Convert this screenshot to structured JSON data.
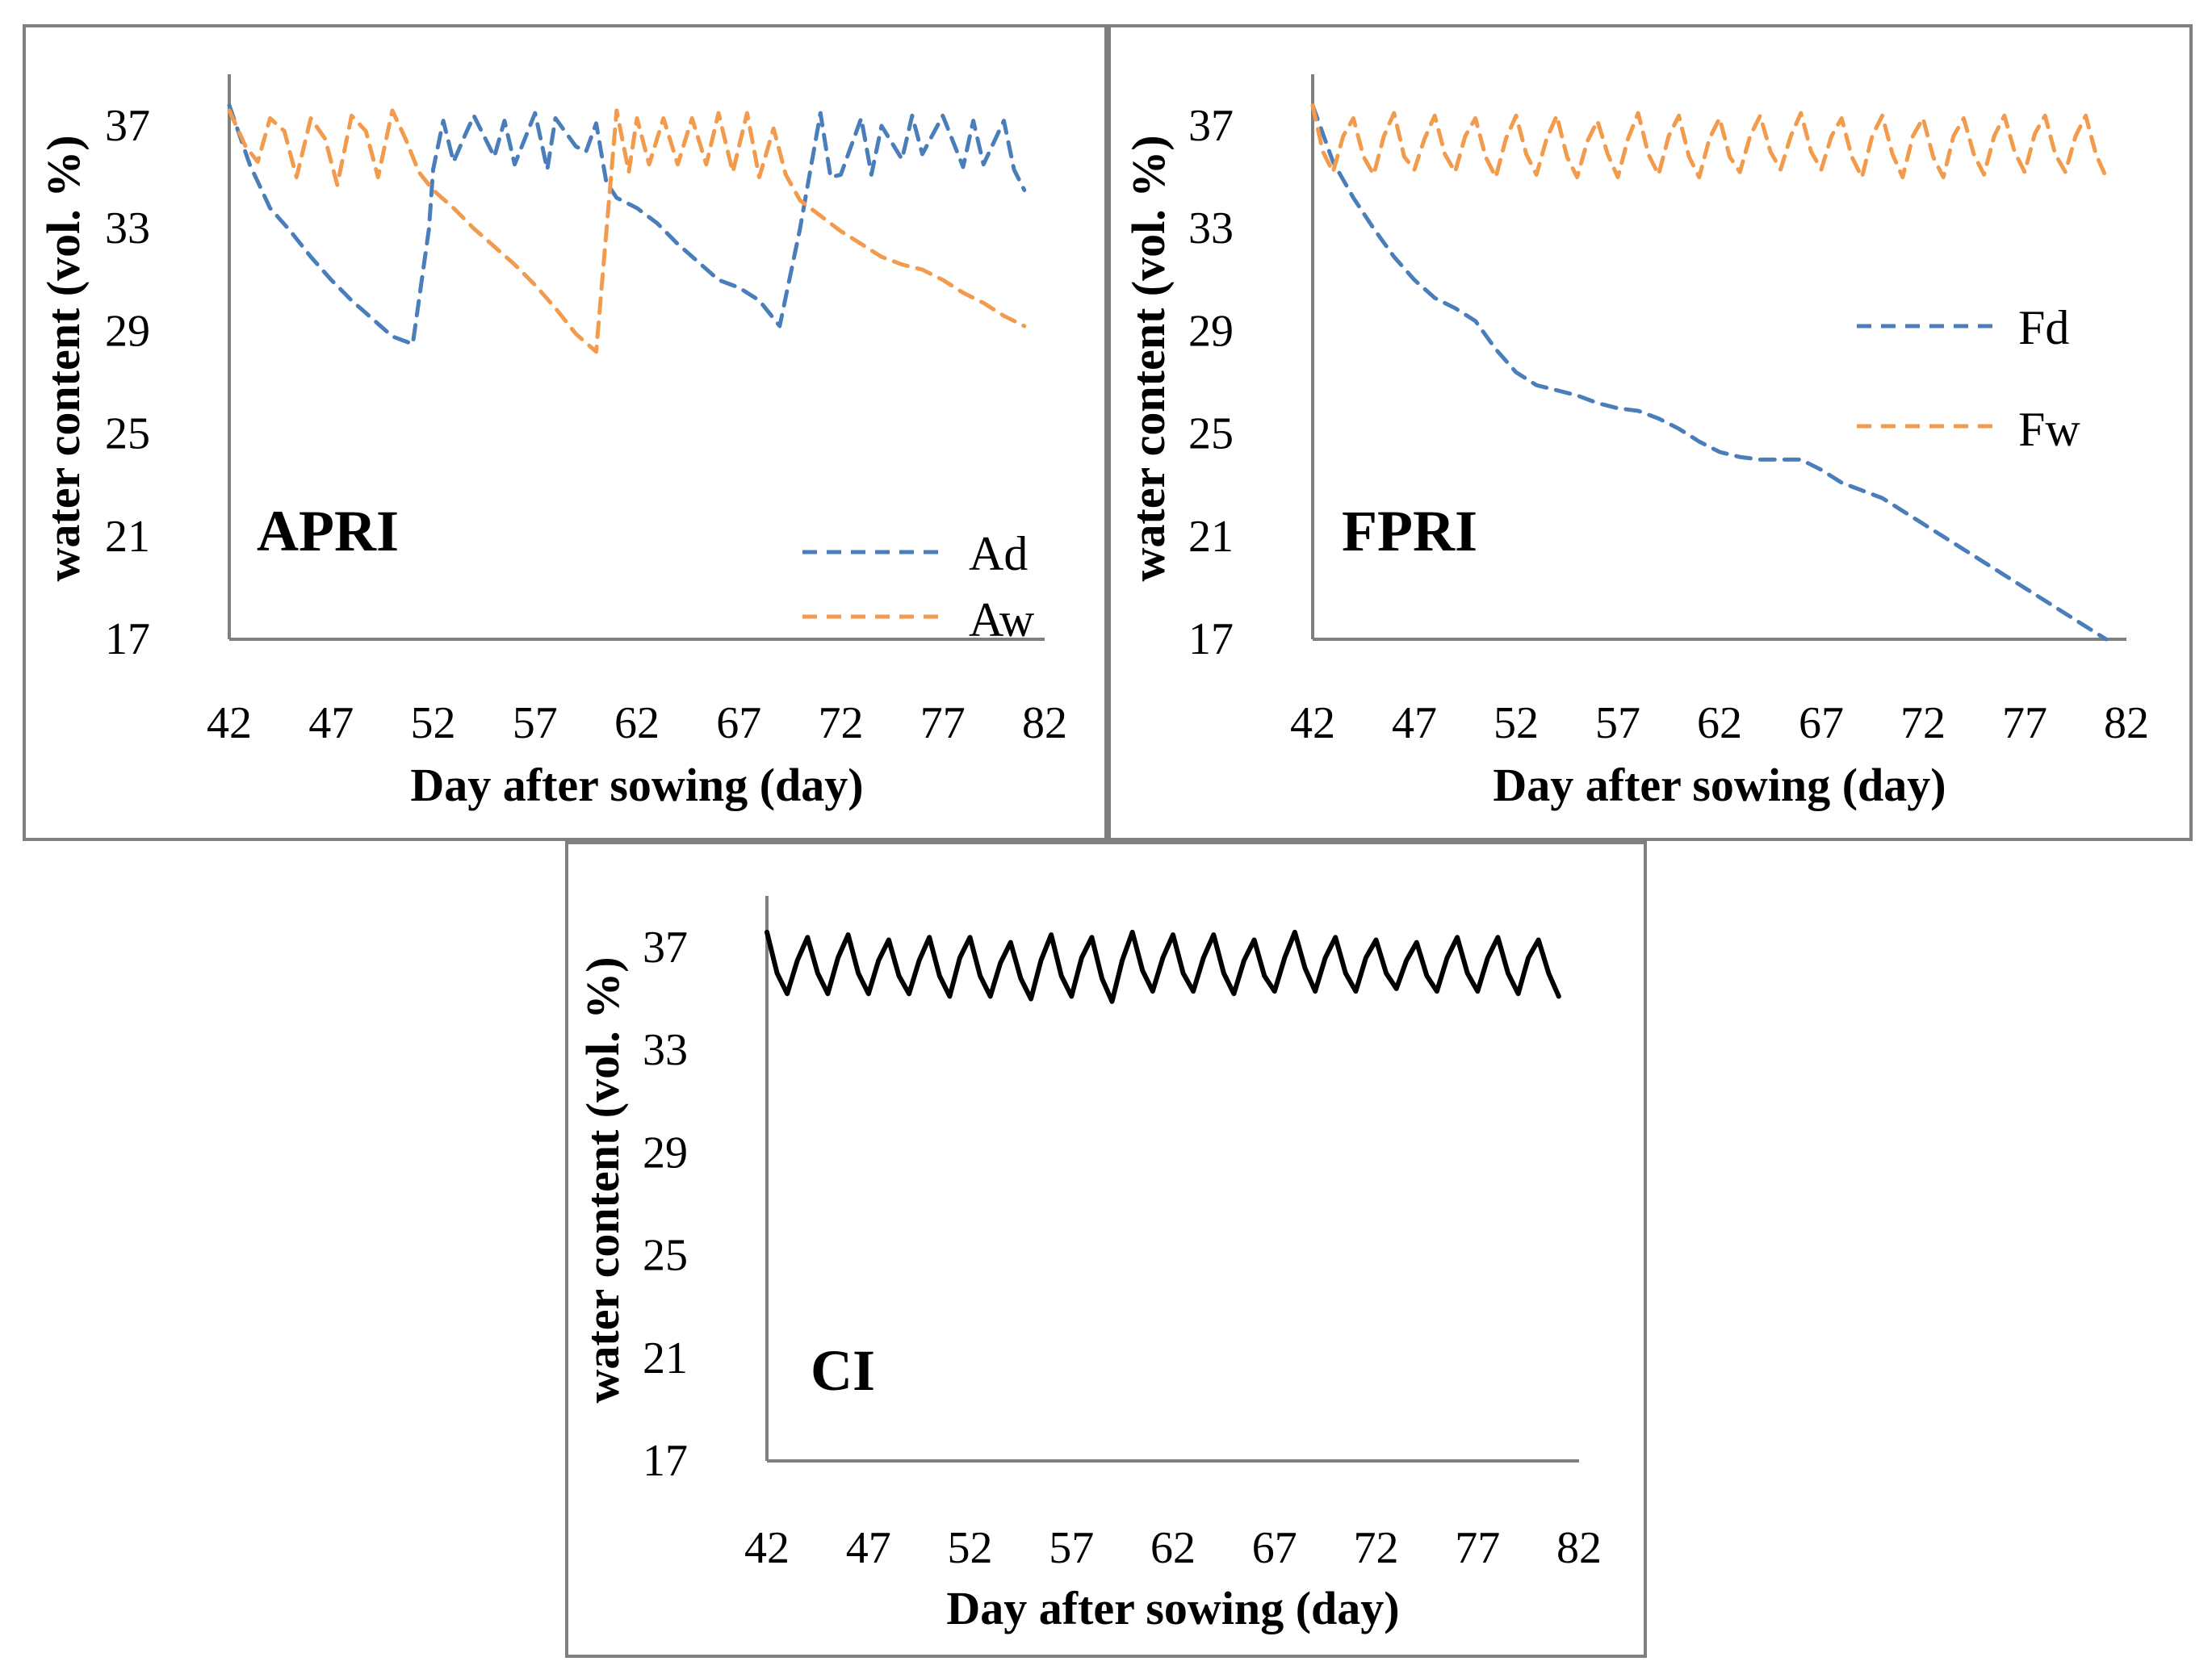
{
  "colors": {
    "blue": "#4a7ebb",
    "orange": "#f39b4c",
    "black": "#000000",
    "axis": "#7f7f7f"
  },
  "chart_data": [
    {
      "type": "line",
      "panel": "APRI",
      "ylabel": "water content (vol. %)",
      "xlabel": "Day after sowing (day)",
      "xlim": [
        42,
        82
      ],
      "ylim": [
        17,
        38
      ],
      "xticks": [
        "42",
        "47",
        "52",
        "57",
        "62",
        "67",
        "72",
        "77",
        "82"
      ],
      "yticks": [
        "37",
        "33",
        "29",
        "25",
        "21",
        "17"
      ],
      "legend": [
        "Ad",
        "Aw"
      ],
      "series": [
        {
          "name": "Ad",
          "style": "dashed",
          "color": "#4a7ebb",
          "x": [
            42,
            43,
            44,
            45,
            46,
            47,
            48,
            49,
            50,
            51,
            51.8,
            52,
            52.5,
            53,
            53.6,
            54,
            55,
            55.5,
            56,
            57,
            57.6,
            58,
            59,
            59.5,
            60,
            60.5,
            61,
            62,
            63,
            64,
            65,
            66,
            67,
            68,
            69,
            70,
            71,
            71.5,
            72,
            73,
            73.5,
            74,
            75,
            75.5,
            76,
            77,
            78,
            78.5,
            79,
            80,
            80.5,
            81
          ],
          "y": [
            37.8,
            35.5,
            33.8,
            32.9,
            31.9,
            31.0,
            30.2,
            29.5,
            28.8,
            28.5,
            33,
            35.3,
            37.2,
            35.6,
            36.7,
            37.4,
            35.8,
            37.2,
            35.5,
            37.5,
            35.3,
            37.3,
            36.2,
            36.0,
            37.1,
            34.8,
            34.2,
            33.8,
            33.2,
            32.4,
            31.7,
            31.0,
            30.7,
            30.2,
            29.2,
            33,
            37.5,
            35.0,
            35.1,
            37.3,
            35.1,
            37.0,
            35.7,
            37.4,
            35.9,
            37.4,
            35.4,
            37.2,
            35.5,
            37.2,
            35.3,
            34.5
          ]
        },
        {
          "name": "Aw",
          "style": "dashed",
          "color": "#f39b4c",
          "x": [
            42,
            42.8,
            43.4,
            44,
            44.7,
            45.3,
            46,
            46.7,
            47.3,
            48,
            48.7,
            49.3,
            50,
            50.7,
            51.3,
            52,
            53,
            54,
            55,
            56,
            57,
            58,
            59,
            60,
            61,
            61.6,
            62,
            62.6,
            63.3,
            64,
            64.7,
            65.4,
            66,
            66.7,
            67.4,
            68,
            68.7,
            69.3,
            70,
            71,
            72,
            73,
            74,
            75,
            76,
            77,
            78,
            79,
            80,
            81
          ],
          "y": [
            37.6,
            36.2,
            35.6,
            37.3,
            36.8,
            35.0,
            37.3,
            36.5,
            34.7,
            37.4,
            36.8,
            35.0,
            37.6,
            36.4,
            35.2,
            34.5,
            33.8,
            33.0,
            32.3,
            31.6,
            30.8,
            29.9,
            28.9,
            28.2,
            37.6,
            35.2,
            37.3,
            35.5,
            37.3,
            35.5,
            37.3,
            35.5,
            37.5,
            35.2,
            37.5,
            35.0,
            36.9,
            35.1,
            34.1,
            33.5,
            32.9,
            32.4,
            31.9,
            31.6,
            31.4,
            31.0,
            30.5,
            30.1,
            29.6,
            29.2
          ]
        }
      ]
    },
    {
      "type": "line",
      "panel": "FPRI",
      "ylabel": "water content (vol. %)",
      "xlabel": "Day after sowing (day)",
      "xlim": [
        42,
        82
      ],
      "ylim": [
        17,
        38
      ],
      "xticks": [
        "42",
        "47",
        "52",
        "57",
        "62",
        "67",
        "72",
        "77",
        "82"
      ],
      "yticks": [
        "37",
        "33",
        "29",
        "25",
        "21",
        "17"
      ],
      "legend": [
        "Fd",
        "Fw"
      ],
      "series": [
        {
          "name": "Fd",
          "style": "dashed",
          "color": "#4a7ebb",
          "x": [
            42,
            43,
            44,
            45,
            46,
            47,
            48,
            49,
            50,
            51,
            52,
            53,
            54,
            55,
            56,
            57,
            58,
            59,
            60,
            61,
            62,
            63,
            64,
            65,
            66,
            67,
            68,
            69,
            70,
            71,
            72,
            73,
            74,
            75,
            76,
            77,
            78,
            79,
            80,
            81
          ],
          "y": [
            37.8,
            35.6,
            34.2,
            33.0,
            31.9,
            31.0,
            30.3,
            29.9,
            29.4,
            28.3,
            27.4,
            26.9,
            26.7,
            26.5,
            26.2,
            26.0,
            25.9,
            25.6,
            25.2,
            24.7,
            24.3,
            24.1,
            24.0,
            24.0,
            24.0,
            23.6,
            23.1,
            22.8,
            22.5,
            22.0,
            21.5,
            21.0,
            20.5,
            20.0,
            19.5,
            19.0,
            18.5,
            18.0,
            17.5,
            17.0
          ]
        },
        {
          "name": "Fw",
          "style": "dashed",
          "color": "#f39b4c",
          "x": [
            42,
            42.5,
            43,
            43.5,
            44,
            44.5,
            45,
            45.5,
            46,
            46.5,
            47,
            47.5,
            48,
            48.5,
            49,
            49.5,
            50,
            50.5,
            51,
            51.5,
            52,
            52.5,
            53,
            53.5,
            54,
            54.5,
            55,
            55.5,
            56,
            56.5,
            57,
            57.5,
            58,
            58.5,
            59,
            59.5,
            60,
            60.5,
            61,
            61.5,
            62,
            62.5,
            63,
            63.5,
            64,
            64.5,
            65,
            65.5,
            66,
            66.5,
            67,
            67.5,
            68,
            68.5,
            69,
            69.5,
            70,
            70.5,
            71,
            71.5,
            72,
            72.5,
            73,
            73.5,
            74,
            74.5,
            75,
            75.5,
            76,
            76.5,
            77,
            77.5,
            78,
            78.5,
            79,
            79.5,
            80,
            80.5,
            81
          ],
          "y": [
            37.8,
            36.0,
            35.2,
            36.6,
            37.3,
            35.8,
            35.1,
            36.6,
            37.5,
            35.8,
            35.3,
            36.5,
            37.4,
            35.9,
            35.2,
            36.6,
            37.3,
            35.8,
            35.0,
            36.5,
            37.4,
            35.9,
            35.1,
            36.5,
            37.4,
            35.8,
            35.0,
            36.4,
            37.2,
            35.9,
            35.0,
            36.5,
            37.5,
            35.9,
            35.1,
            36.6,
            37.4,
            35.8,
            35.0,
            36.5,
            37.3,
            35.8,
            35.2,
            36.6,
            37.4,
            36.0,
            35.3,
            36.6,
            37.5,
            36.0,
            35.3,
            36.6,
            37.3,
            35.8,
            35.0,
            36.6,
            37.4,
            35.9,
            35.0,
            36.6,
            37.3,
            35.8,
            35.0,
            36.6,
            37.3,
            35.9,
            35.1,
            36.6,
            37.4,
            36.0,
            35.2,
            36.7,
            37.4,
            35.9,
            35.2,
            36.6,
            37.4,
            35.9,
            35.0
          ]
        }
      ]
    },
    {
      "type": "line",
      "panel": "CI",
      "ylabel": "water content (vol. %)",
      "xlabel": "Day after sowing (day)",
      "xlim": [
        42,
        82
      ],
      "ylim": [
        17,
        38
      ],
      "xticks": [
        "42",
        "47",
        "52",
        "57",
        "62",
        "67",
        "72",
        "77",
        "82"
      ],
      "yticks": [
        "37",
        "33",
        "29",
        "25",
        "21",
        "17"
      ],
      "legend": [],
      "series": [
        {
          "name": "CI",
          "style": "solid",
          "color": "#000000",
          "x": [
            42,
            42.5,
            43,
            43.5,
            44,
            44.5,
            45,
            45.5,
            46,
            46.5,
            47,
            47.5,
            48,
            48.5,
            49,
            49.5,
            50,
            50.5,
            51,
            51.5,
            52,
            52.5,
            53,
            53.5,
            54,
            54.5,
            55,
            55.5,
            56,
            56.5,
            57,
            57.5,
            58,
            58.5,
            59,
            59.5,
            60,
            60.5,
            61,
            61.5,
            62,
            62.5,
            63,
            63.5,
            64,
            64.5,
            65,
            65.5,
            66,
            66.5,
            67,
            67.5,
            68,
            68.5,
            69,
            69.5,
            70,
            70.5,
            71,
            71.5,
            72,
            72.5,
            73,
            73.5,
            74,
            74.5,
            75,
            75.5,
            76,
            76.5,
            77,
            77.5,
            78,
            78.5,
            79,
            79.5,
            80,
            80.5,
            81
          ],
          "y": [
            37.6,
            36.0,
            35.2,
            36.5,
            37.4,
            36.0,
            35.2,
            36.6,
            37.5,
            36.0,
            35.2,
            36.5,
            37.3,
            35.9,
            35.2,
            36.5,
            37.4,
            35.9,
            35.1,
            36.6,
            37.4,
            35.9,
            35.1,
            36.4,
            37.2,
            35.8,
            35.0,
            36.5,
            37.5,
            35.9,
            35.1,
            36.6,
            37.4,
            35.8,
            34.9,
            36.5,
            37.6,
            36.1,
            35.3,
            36.6,
            37.5,
            36.0,
            35.3,
            36.6,
            37.5,
            36.0,
            35.2,
            36.5,
            37.3,
            35.9,
            35.3,
            36.6,
            37.6,
            36.2,
            35.3,
            36.6,
            37.4,
            36.0,
            35.3,
            36.6,
            37.3,
            36.0,
            35.4,
            36.5,
            37.2,
            35.9,
            35.3,
            36.6,
            37.4,
            36.0,
            35.3,
            36.6,
            37.4,
            36.0,
            35.2,
            36.6,
            37.3,
            36.0,
            35.1
          ]
        }
      ]
    }
  ],
  "panel_labels": {
    "apri": "APRI",
    "fpri": "FPRI",
    "ci": "CI"
  },
  "legends": {
    "apri": [
      "Ad",
      "Aw"
    ],
    "fpri": [
      "Fd",
      "Fw"
    ]
  }
}
